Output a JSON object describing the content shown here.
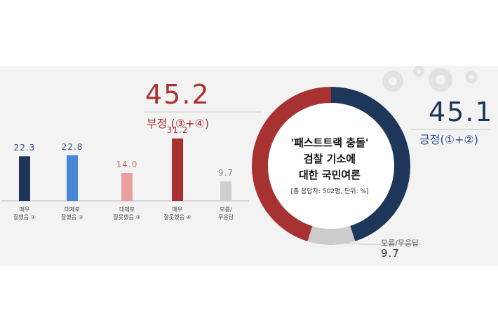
{
  "chart_data": [
    {
      "type": "bar",
      "categories": [
        [
          "매우",
          "잘했음 ①"
        ],
        [
          "대체로",
          "잘했음 ②"
        ],
        [
          "대체로",
          "잘못했음 ③"
        ],
        [
          "매우",
          "잘못했음 ④"
        ],
        [
          "모름/",
          "무응답"
        ]
      ],
      "values": [
        22.3,
        22.8,
        14.0,
        31.2,
        9.7
      ],
      "value_labels": [
        "22.3",
        "22.8",
        "14.0",
        "31.2",
        "9.7"
      ],
      "colors": [
        "#1d3659",
        "#4a86d6",
        "#e89f9f",
        "#a83232",
        "#cfcfcf"
      ],
      "value_colors": [
        "#2a4a8a",
        "#2a4a8a",
        "#c96b6b",
        "#a83232",
        "#888888"
      ],
      "ylim": [
        0,
        35
      ]
    },
    {
      "type": "pie",
      "style": "donut",
      "title_lines": [
        "'패스트트랙 충돌'",
        "검찰 기소에",
        "대한 국민여론"
      ],
      "note": "[총 응답자: 502명, 단위: %]",
      "slices": [
        {
          "label": "긍정(①+②)",
          "value": 45.1,
          "value_label": "45.1",
          "color": "#1d3659"
        },
        {
          "label": "모름/무응답",
          "value": 9.7,
          "value_label": "9.7",
          "color": "#cccccc"
        },
        {
          "label": "부정 (③+④)",
          "value": 45.2,
          "value_label": "45.2",
          "color": "#a83232"
        }
      ]
    }
  ],
  "icons": [
    "gear-cluster-icon"
  ]
}
